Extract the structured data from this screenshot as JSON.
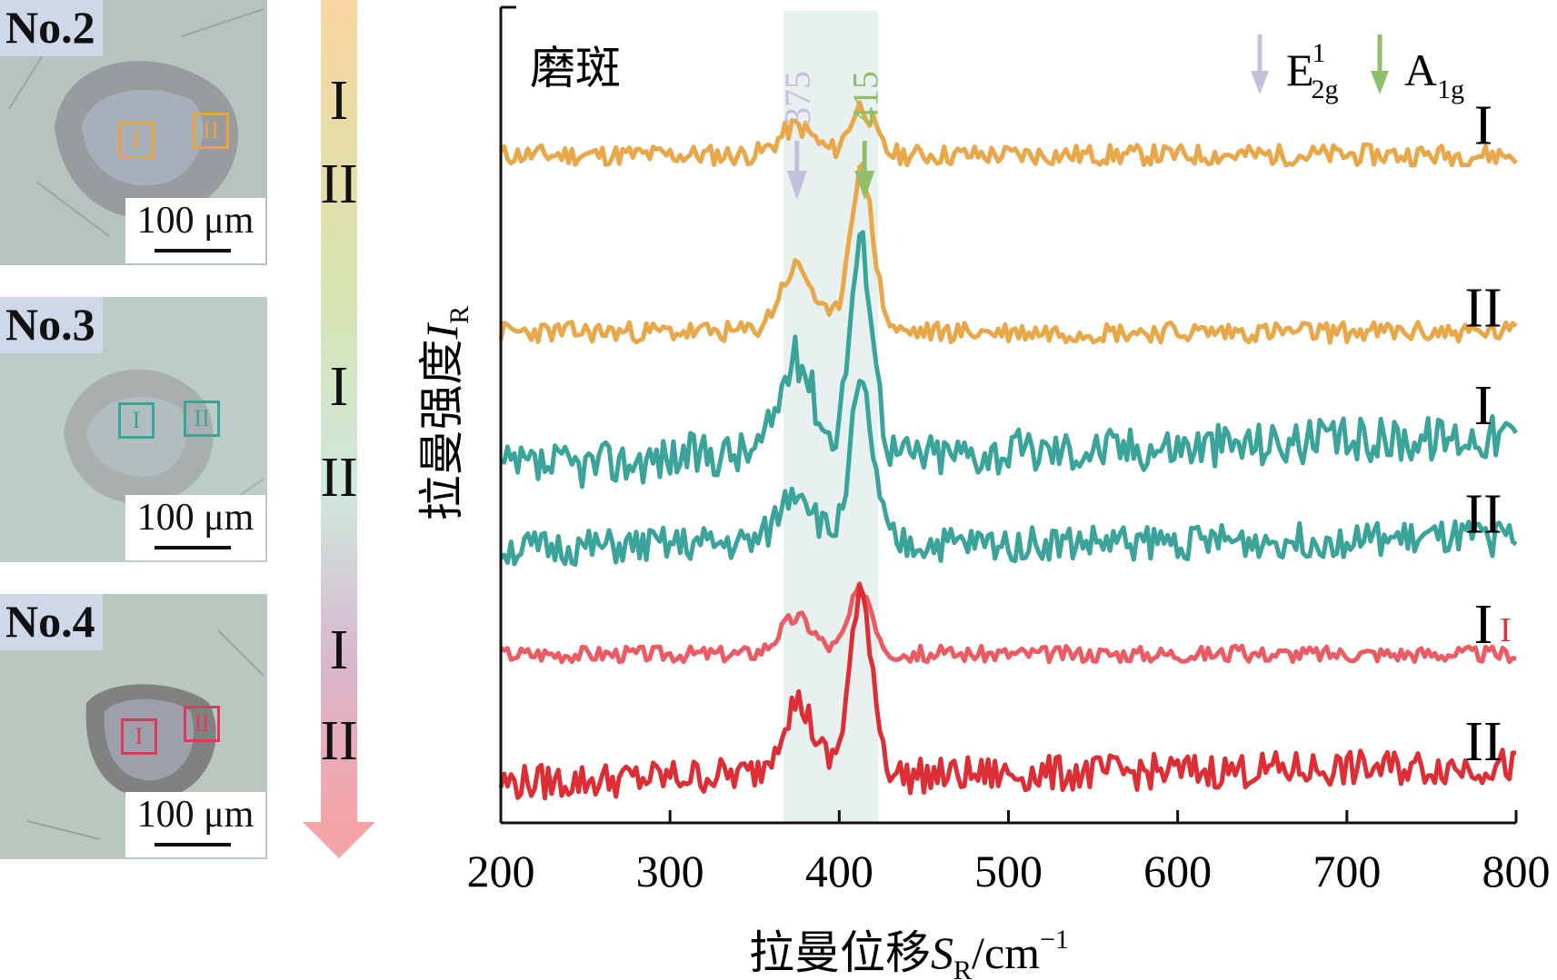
{
  "panels": [
    {
      "label": "No.2",
      "scale": "100 μm",
      "roi": [
        "I",
        "II"
      ],
      "color": "#e8a33a"
    },
    {
      "label": "No.3",
      "scale": "100 μm",
      "roi": [
        "I",
        "II"
      ],
      "color": "#3aa39a"
    },
    {
      "label": "No.4",
      "scale": "100 μm",
      "roi": [
        "I",
        "II"
      ],
      "color": "#e03a5a"
    }
  ],
  "arrow_labels": [
    "I",
    "II",
    "I",
    "II",
    "I",
    "II"
  ],
  "chart_data": {
    "type": "line",
    "title": "磨斑",
    "xlabel": "拉曼位移",
    "xlabel_symbol": "S",
    "xlabel_sub": "R",
    "xlabel_unit": "/cm",
    "xlabel_sup": "−1",
    "ylabel": "拉曼强度",
    "ylabel_symbol": "I",
    "ylabel_sub": "R",
    "xlim": [
      200,
      800
    ],
    "xticks": [
      "200",
      "300",
      "400",
      "500",
      "600",
      "700",
      "800"
    ],
    "highlight_band": [
      367,
      423
    ],
    "peaks": [
      {
        "value": "375",
        "mode": "E",
        "sup": "1",
        "sub": "2g",
        "color": "#c3c0dc"
      },
      {
        "value": "415",
        "mode": "A",
        "sup": "",
        "sub": "1g",
        "color": "#8fbf6a"
      }
    ],
    "series": [
      {
        "name": "No.2 I",
        "label": "I",
        "color": "#e8a84a",
        "offset": 0.83,
        "noise": 0.013,
        "slope": 0.0,
        "p375": 0.035,
        "p415": 0.06,
        "seed": 11
      },
      {
        "name": "No.2 II",
        "label": "II",
        "color": "#e8a84a",
        "offset": 0.61,
        "noise": 0.013,
        "slope": 0.0,
        "p375": 0.08,
        "p415": 0.2,
        "seed": 23
      },
      {
        "name": "No.3 I",
        "label": "I",
        "color": "#3aa39a",
        "offset": 0.44,
        "noise": 0.028,
        "slope": 0.12,
        "p375": 0.12,
        "p415": 0.26,
        "seed": 37
      },
      {
        "name": "No.3 II",
        "label": "II",
        "color": "#3aa39a",
        "offset": 0.34,
        "noise": 0.022,
        "slope": 0.04,
        "p375": 0.07,
        "p415": 0.19,
        "seed": 51
      },
      {
        "name": "No.4 I",
        "label": "I",
        "color": "#ec5a64",
        "offset": 0.21,
        "noise": 0.01,
        "slope": 0.0,
        "p375": 0.045,
        "p415": 0.08,
        "seed": 67
      },
      {
        "name": "No.4 II",
        "label": "II",
        "color": "#dd2e36",
        "offset": 0.05,
        "noise": 0.022,
        "slope": 0.06,
        "p375": 0.09,
        "p415": 0.22,
        "seed": 79
      }
    ],
    "extra_label": {
      "text": "I",
      "color": "#e0303a"
    }
  }
}
